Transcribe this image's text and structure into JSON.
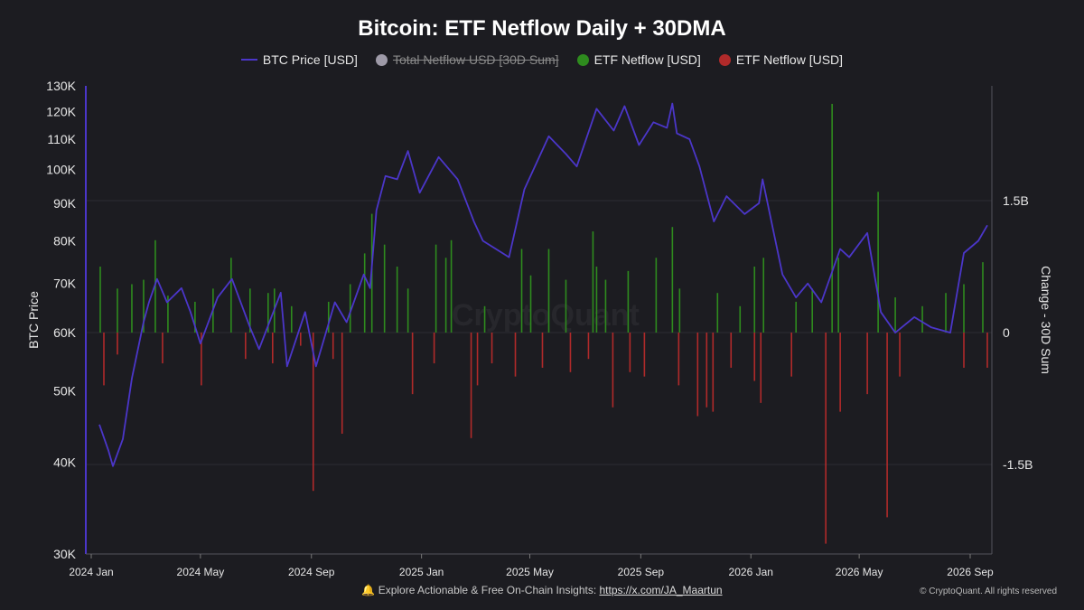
{
  "title": "Bitcoin: ETF Netflow Daily + 30DMA",
  "watermark": "CryptoQuant",
  "legend": [
    {
      "label": "BTC Price [USD]",
      "color": "#4b36c9",
      "kind": "line",
      "enabled": true
    },
    {
      "label": "Total Netflow USD [30D Sum]",
      "color": "#9e9aa8",
      "kind": "dot",
      "enabled": false
    },
    {
      "label": "ETF Netflow [USD]",
      "color": "#2e8b1e",
      "kind": "dot",
      "enabled": true
    },
    {
      "label": "ETF Netflow [USD]",
      "color": "#b02a2a",
      "kind": "dot",
      "enabled": true
    }
  ],
  "footer": {
    "prefix": "🔔 Explore Actionable & Free On-Chain Insights:",
    "link": "https://x.com/JA_Maartun",
    "copyright": "© CryptoQuant. All rights reserved"
  },
  "chart_data": {
    "type": "line",
    "title": "Bitcoin: ETF Netflow Daily + 30DMA",
    "x_ticks": [
      "2024 Jan",
      "2024 May",
      "2024 Sep",
      "2025 Jan",
      "2025 May",
      "2025 Sep",
      "2026 Jan",
      "2026 May",
      "2026 Sep"
    ],
    "left_axis": {
      "label": "BTC Price",
      "scale": "log",
      "ticks": [
        "30K",
        "40K",
        "50K",
        "60K",
        "70K",
        "80K",
        "90K",
        "100K",
        "110K",
        "120K",
        "130K"
      ],
      "tick_values": [
        30000,
        40000,
        50000,
        60000,
        70000,
        80000,
        90000,
        100000,
        110000,
        120000,
        130000
      ],
      "range": [
        30000,
        130000
      ]
    },
    "right_axis": {
      "label": "Change - 30D Sum",
      "ticks": [
        "1.5B",
        "0",
        "-1.5B"
      ],
      "tick_values": [
        1.5,
        0,
        -1.5
      ],
      "range": [
        -2.6,
        2.9
      ],
      "unit": "B USD"
    },
    "grid": true,
    "series": [
      {
        "name": "BTC Price [USD]",
        "axis": "left",
        "color": "#4b36c9",
        "x": [
          "2024-01-10",
          "2024-01-20",
          "2024-01-25",
          "2024-02-05",
          "2024-02-15",
          "2024-02-28",
          "2024-03-05",
          "2024-03-14",
          "2024-03-25",
          "2024-04-10",
          "2024-04-20",
          "2024-05-01",
          "2024-05-20",
          "2024-06-05",
          "2024-06-25",
          "2024-07-05",
          "2024-07-29",
          "2024-08-05",
          "2024-08-25",
          "2024-09-06",
          "2024-09-27",
          "2024-10-10",
          "2024-10-29",
          "2024-11-05",
          "2024-11-12",
          "2024-11-22",
          "2024-12-05",
          "2024-12-17",
          "2024-12-30",
          "2025-01-20",
          "2025-02-10",
          "2025-02-28",
          "2025-03-10",
          "2025-04-08",
          "2025-04-25",
          "2025-05-22",
          "2025-06-10",
          "2025-06-22",
          "2025-07-14",
          "2025-08-02",
          "2025-08-14",
          "2025-08-30",
          "2025-09-15",
          "2025-09-30",
          "2025-10-06",
          "2025-10-11",
          "2025-10-25",
          "2025-11-05",
          "2025-11-21",
          "2025-12-05",
          "2025-12-25",
          "2026-01-10",
          "2026-01-14",
          "2026-02-05",
          "2026-02-20",
          "2026-03-05",
          "2026-03-20",
          "2026-04-10",
          "2026-04-20",
          "2026-05-10",
          "2026-05-25",
          "2026-06-10",
          "2026-07-01",
          "2026-07-20",
          "2026-08-10",
          "2026-08-25",
          "2026-09-10",
          "2026-09-20"
        ],
        "y": [
          45000,
          41500,
          39500,
          43000,
          52000,
          62000,
          66000,
          71000,
          66000,
          69000,
          64000,
          58000,
          67000,
          71000,
          61000,
          57000,
          68000,
          54000,
          64000,
          54000,
          66000,
          62000,
          72000,
          69000,
          88000,
          98000,
          97000,
          106000,
          93000,
          104000,
          97000,
          85000,
          80000,
          76000,
          94000,
          111000,
          105000,
          101000,
          121000,
          113000,
          122000,
          108000,
          116000,
          114000,
          123000,
          112000,
          110000,
          101000,
          85000,
          92000,
          87000,
          90000,
          97000,
          72000,
          67000,
          70000,
          66000,
          78000,
          76000,
          82000,
          64000,
          60000,
          63000,
          61000,
          60000,
          77000,
          80000,
          84000
        ]
      },
      {
        "name": "ETF Netflow [USD]",
        "axis": "right",
        "color": "#2e8b1e",
        "sign": "inflow",
        "spikes": [
          [
            "2024-01-11",
            0.75
          ],
          [
            "2024-01-30",
            0.5
          ],
          [
            "2024-02-15",
            0.55
          ],
          [
            "2024-02-28",
            0.6
          ],
          [
            "2024-03-12",
            1.05
          ],
          [
            "2024-03-26",
            0.42
          ],
          [
            "2024-04-25",
            0.35
          ],
          [
            "2024-05-15",
            0.5
          ],
          [
            "2024-06-04",
            0.85
          ],
          [
            "2024-06-25",
            0.5
          ],
          [
            "2024-07-15",
            0.45
          ],
          [
            "2024-07-22",
            0.5
          ],
          [
            "2024-08-10",
            0.3
          ],
          [
            "2024-09-20",
            0.35
          ],
          [
            "2024-10-14",
            0.55
          ],
          [
            "2024-10-30",
            0.9
          ],
          [
            "2024-11-07",
            1.35
          ],
          [
            "2024-11-21",
            1.0
          ],
          [
            "2024-12-05",
            0.75
          ],
          [
            "2024-12-17",
            0.5
          ],
          [
            "2025-01-17",
            1.0
          ],
          [
            "2025-01-28",
            0.85
          ],
          [
            "2025-02-03",
            1.05
          ],
          [
            "2025-03-12",
            0.3
          ],
          [
            "2025-04-22",
            0.95
          ],
          [
            "2025-05-02",
            0.65
          ],
          [
            "2025-05-22",
            0.95
          ],
          [
            "2025-06-10",
            0.6
          ],
          [
            "2025-07-10",
            1.15
          ],
          [
            "2025-07-14",
            0.75
          ],
          [
            "2025-07-24",
            0.6
          ],
          [
            "2025-08-18",
            0.7
          ],
          [
            "2025-09-18",
            0.85
          ],
          [
            "2025-10-06",
            1.2
          ],
          [
            "2025-10-14",
            0.5
          ],
          [
            "2025-11-25",
            0.45
          ],
          [
            "2025-12-20",
            0.3
          ],
          [
            "2026-01-05",
            0.75
          ],
          [
            "2026-01-15",
            0.85
          ],
          [
            "2026-02-20",
            0.35
          ],
          [
            "2026-03-10",
            0.5
          ],
          [
            "2026-04-01",
            2.6
          ],
          [
            "2026-04-08",
            0.85
          ],
          [
            "2026-05-22",
            1.6
          ],
          [
            "2026-06-10",
            0.4
          ],
          [
            "2026-07-10",
            0.3
          ],
          [
            "2026-08-05",
            0.45
          ],
          [
            "2026-08-25",
            0.55
          ],
          [
            "2026-09-15",
            0.8
          ]
        ]
      },
      {
        "name": "ETF Netflow [USD]",
        "axis": "right",
        "color": "#b02a2a",
        "sign": "outflow",
        "spikes": [
          [
            "2024-01-15",
            -0.6
          ],
          [
            "2024-01-30",
            -0.25
          ],
          [
            "2024-03-20",
            -0.35
          ],
          [
            "2024-05-02",
            -0.6
          ],
          [
            "2024-06-20",
            -0.3
          ],
          [
            "2024-07-20",
            -0.35
          ],
          [
            "2024-08-20",
            -0.15
          ],
          [
            "2024-09-03",
            -1.8
          ],
          [
            "2024-09-25",
            -0.3
          ],
          [
            "2024-10-05",
            -1.15
          ],
          [
            "2024-12-22",
            -0.7
          ],
          [
            "2025-01-15",
            -0.35
          ],
          [
            "2025-02-25",
            -1.2
          ],
          [
            "2025-03-04",
            -0.6
          ],
          [
            "2025-03-20",
            -0.35
          ],
          [
            "2025-04-15",
            -0.5
          ],
          [
            "2025-05-15",
            -0.4
          ],
          [
            "2025-06-15",
            -0.45
          ],
          [
            "2025-07-05",
            -0.3
          ],
          [
            "2025-08-01",
            -0.85
          ],
          [
            "2025-08-20",
            -0.45
          ],
          [
            "2025-09-05",
            -0.5
          ],
          [
            "2025-10-13",
            -0.6
          ],
          [
            "2025-11-03",
            -0.95
          ],
          [
            "2025-11-13",
            -0.85
          ],
          [
            "2025-11-20",
            -0.9
          ],
          [
            "2025-12-10",
            -0.4
          ],
          [
            "2026-01-05",
            -0.55
          ],
          [
            "2026-01-12",
            -0.8
          ],
          [
            "2026-02-15",
            -0.5
          ],
          [
            "2026-03-25",
            -2.4
          ],
          [
            "2026-04-10",
            -0.9
          ],
          [
            "2026-05-10",
            -0.7
          ],
          [
            "2026-06-01",
            -2.1
          ],
          [
            "2026-06-15",
            -0.5
          ],
          [
            "2026-08-25",
            -0.4
          ],
          [
            "2026-09-20",
            -0.4
          ]
        ]
      }
    ]
  }
}
